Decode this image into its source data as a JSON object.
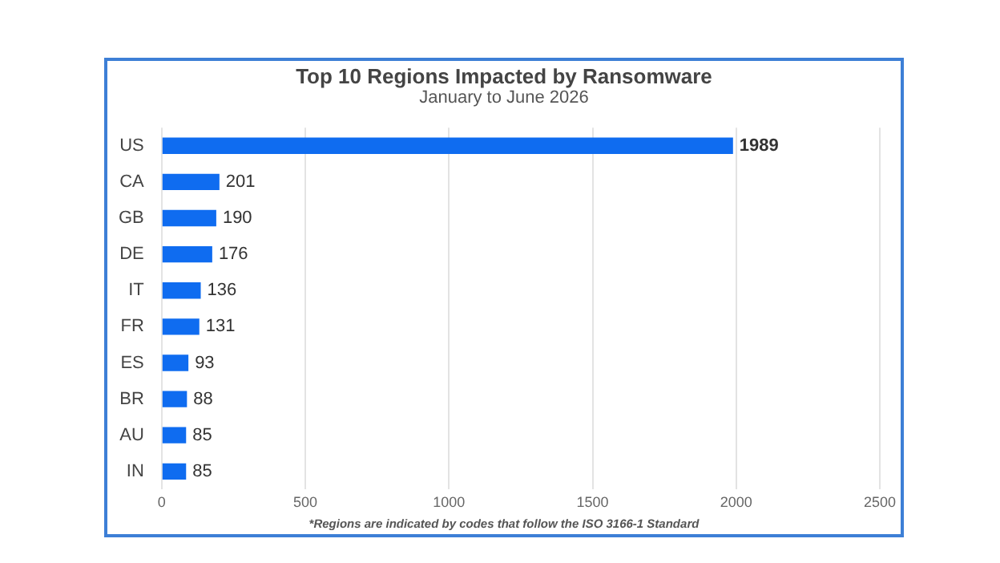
{
  "chart_data": {
    "type": "bar",
    "orientation": "horizontal",
    "title": "Top 10 Regions Impacted by Ransomware",
    "subtitle": "January to June 2026",
    "categories": [
      "US",
      "CA",
      "GB",
      "DE",
      "IT",
      "FR",
      "ES",
      "BR",
      "AU",
      "IN"
    ],
    "values": [
      1989,
      201,
      190,
      176,
      136,
      131,
      93,
      88,
      85,
      85
    ],
    "color": "#0f6cf0",
    "xlim": [
      0,
      2500
    ],
    "xticks": [
      0,
      500,
      1000,
      1500,
      2000,
      2500
    ],
    "grid": "x",
    "data_labels": true,
    "legend": false,
    "annotations": [
      "*Regions are indicated by codes that follow the ISO 3166-1 Standard"
    ]
  }
}
